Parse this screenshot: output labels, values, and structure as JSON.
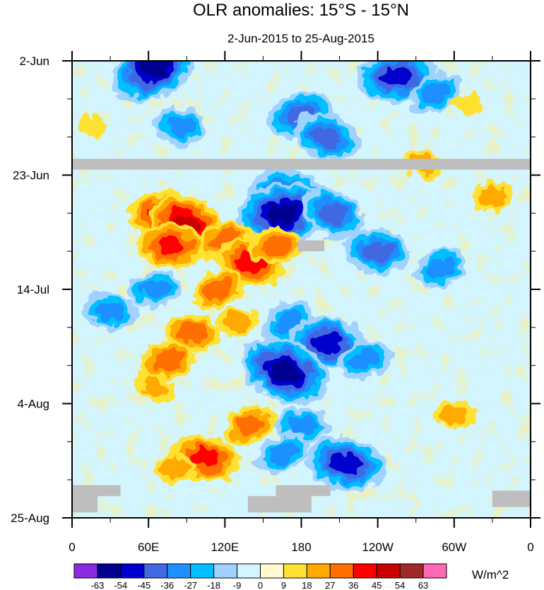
{
  "chart_data": {
    "type": "heatmap",
    "title": "OLR anomalies: 15°S - 15°N",
    "subtitle": "2-Jun-2015 to 25-Aug-2015",
    "x_ticks": [
      "0",
      "60E",
      "120E",
      "180",
      "120W",
      "60W",
      "0"
    ],
    "x_range_deg": [
      0,
      360
    ],
    "y_ticks": [
      "2-Jun",
      "23-Jun",
      "14-Jul",
      "4-Aug",
      "25-Aug"
    ],
    "y_range_days": [
      0,
      84
    ],
    "colorbar": {
      "unit": "W/m^2",
      "labels": [
        "-63",
        "-54",
        "-45",
        "-36",
        "-27",
        "-18",
        "-9",
        "0",
        "9",
        "18",
        "27",
        "36",
        "45",
        "54",
        "63"
      ],
      "colors": [
        "#8a2be2",
        "#000090",
        "#0000cd",
        "#4169e1",
        "#1e90ff",
        "#00bfff",
        "#a0d2ff",
        "#d2f5ff",
        "#fffad2",
        "#ffe132",
        "#ffaa00",
        "#ff6e00",
        "#ff0000",
        "#c80000",
        "#a02828",
        "#ff69b4"
      ]
    },
    "anomaly_features": [
      {
        "lon": 65,
        "day": 1,
        "value": -54
      },
      {
        "lon": 85,
        "day": 12,
        "value": -27
      },
      {
        "lon": 180,
        "day": 10,
        "value": -36
      },
      {
        "lon": 200,
        "day": 14,
        "value": -36
      },
      {
        "lon": 255,
        "day": 3,
        "value": -45
      },
      {
        "lon": 285,
        "day": 6,
        "value": -27
      },
      {
        "lon": 170,
        "day": 25,
        "value": -45
      },
      {
        "lon": 165,
        "day": 28,
        "value": -54
      },
      {
        "lon": 205,
        "day": 28,
        "value": -36
      },
      {
        "lon": 240,
        "day": 35,
        "value": -36
      },
      {
        "lon": 290,
        "day": 38,
        "value": -27
      },
      {
        "lon": 30,
        "day": 46,
        "value": -27
      },
      {
        "lon": 65,
        "day": 42,
        "value": -27
      },
      {
        "lon": 170,
        "day": 48,
        "value": -27
      },
      {
        "lon": 200,
        "day": 52,
        "value": -45
      },
      {
        "lon": 230,
        "day": 55,
        "value": -27
      },
      {
        "lon": 167,
        "day": 57,
        "value": -54
      },
      {
        "lon": 180,
        "day": 67,
        "value": -27
      },
      {
        "lon": 165,
        "day": 72,
        "value": -27
      },
      {
        "lon": 215,
        "day": 74,
        "value": -45
      },
      {
        "lon": 70,
        "day": 28,
        "value": 36
      },
      {
        "lon": 90,
        "day": 30,
        "value": 45
      },
      {
        "lon": 78,
        "day": 34,
        "value": 36
      },
      {
        "lon": 120,
        "day": 33,
        "value": 27
      },
      {
        "lon": 140,
        "day": 37,
        "value": 36
      },
      {
        "lon": 160,
        "day": 34,
        "value": 27
      },
      {
        "lon": 115,
        "day": 42,
        "value": 27
      },
      {
        "lon": 95,
        "day": 50,
        "value": 27
      },
      {
        "lon": 75,
        "day": 55,
        "value": 27
      },
      {
        "lon": 65,
        "day": 60,
        "value": 18
      },
      {
        "lon": 130,
        "day": 48,
        "value": 18
      },
      {
        "lon": 140,
        "day": 67,
        "value": 27
      },
      {
        "lon": 105,
        "day": 73,
        "value": 36
      },
      {
        "lon": 80,
        "day": 75,
        "value": 18
      },
      {
        "lon": 275,
        "day": 19,
        "value": 18
      },
      {
        "lon": 300,
        "day": 65,
        "value": 18
      },
      {
        "lon": 330,
        "day": 25,
        "value": 18
      },
      {
        "lon": 15,
        "day": 12,
        "value": 9
      },
      {
        "lon": 310,
        "day": 8,
        "value": 9
      }
    ],
    "missing_data": [
      {
        "lon_range": [
          0,
          360
        ],
        "day_range": [
          18,
          20
        ]
      },
      {
        "lon_range": [
          177,
          198
        ],
        "day_range": [
          33,
          35
        ]
      },
      {
        "lon_range": [
          0,
          20
        ],
        "day_range": [
          78,
          83
        ]
      },
      {
        "lon_range": [
          15,
          38
        ],
        "day_range": [
          78,
          80
        ]
      },
      {
        "lon_range": [
          138,
          188
        ],
        "day_range": [
          80,
          83
        ]
      },
      {
        "lon_range": [
          160,
          203
        ],
        "day_range": [
          78,
          80
        ]
      },
      {
        "lon_range": [
          330,
          360
        ],
        "day_range": [
          79,
          82
        ]
      }
    ]
  }
}
